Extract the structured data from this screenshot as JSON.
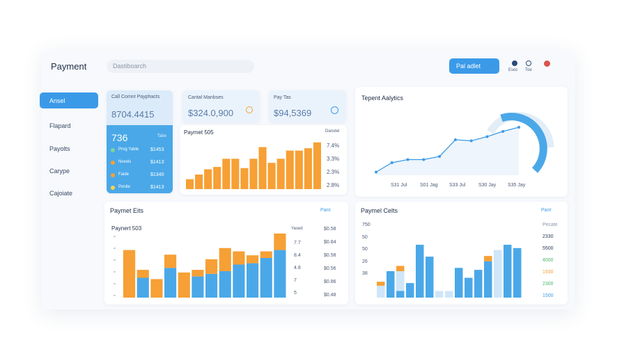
{
  "header": {
    "title": "Payment",
    "search": "Dastiboarch",
    "button": "Pal adlet",
    "user_items": [
      "Esoc",
      "Toe"
    ]
  },
  "sidebar": {
    "items": [
      "Ansel",
      "Flapard",
      "Payolts",
      "Carype",
      "Cajoiate"
    ]
  },
  "cards": [
    {
      "label": "Call Comnt Payphacts",
      "value": "8704.4415"
    },
    {
      "label": "Cantal Manbses",
      "value": "$324.0,900"
    },
    {
      "label": "Pay Tas",
      "value": "$94,5369"
    }
  ],
  "summary": {
    "value": "736",
    "tag": "Tabo",
    "items": [
      {
        "name": "Prog Yable",
        "amount": "$1453"
      },
      {
        "name": "Novels",
        "amount": "$1413"
      },
      {
        "name": "Faide",
        "amount": "$1340"
      },
      {
        "name": "Ponite",
        "amount": "$1413"
      }
    ]
  },
  "bar_chart": {
    "title": "Paymet 505",
    "legend": "Danstel",
    "labels": [
      "7.4%",
      "3.3%",
      "2.3%",
      "2.8%"
    ],
    "color": "#f6a035",
    "ylim": [
      0,
      100
    ],
    "values": [
      17,
      25,
      34,
      38,
      52,
      52,
      36,
      52,
      72,
      45,
      52,
      66,
      66,
      70,
      80
    ]
  },
  "analytics": {
    "title": "Tepent Aalytics",
    "x_labels": [
      "S31 Jul",
      "S01 Jag",
      "S33 Jul",
      "S30 Jay",
      "S35 Jay"
    ],
    "color": "#3b9ae8",
    "ylim": [
      0,
      100
    ],
    "values": [
      6,
      24,
      30,
      30,
      36,
      68,
      66,
      74,
      84,
      92
    ]
  },
  "panel_left": {
    "title": "Paymet Eits",
    "filter": "Pant",
    "chart_title": "Paynert 503",
    "legend": "Yased",
    "labels_a": [
      "7.7",
      "8.4",
      "4.8",
      "7",
      "5"
    ],
    "labels_b": [
      "$0.58",
      "$0.84",
      "$0.58",
      "$0.56",
      "$0.86",
      "$0.48"
    ],
    "ylim": [
      0,
      100
    ],
    "series": [
      {
        "name": "Blue",
        "color": "#4aa8e8",
        "values": [
          0,
          30,
          0,
          45,
          0,
          32,
          36,
          40,
          50,
          52,
          60,
          72
        ]
      },
      {
        "name": "Orange",
        "color": "#f6a035",
        "values": [
          72,
          12,
          28,
          20,
          38,
          10,
          22,
          35,
          20,
          12,
          10,
          25
        ]
      }
    ]
  },
  "panel_right": {
    "title": "Paymel Celts",
    "filter": "Pant",
    "left_labels": [
      "750",
      "50",
      "50",
      "26",
      "38"
    ],
    "right_labels": [
      "Pecate",
      "2330",
      "5500",
      "4000",
      "1930",
      "2300",
      "1500"
    ],
    "ylim": [
      0,
      100
    ],
    "series": [
      {
        "name": "Blue",
        "color": "#4aa8e8",
        "values": [
          0,
          40,
          10,
          22,
          80,
          62,
          0,
          0,
          45,
          30,
          42,
          55,
          0,
          80,
          75
        ]
      },
      {
        "name": "Light",
        "color": "#cfe6f8",
        "values": [
          18,
          0,
          30,
          0,
          0,
          0,
          10,
          10,
          0,
          0,
          0,
          0,
          72,
          0,
          0
        ]
      },
      {
        "name": "Orange",
        "color": "#f6a035",
        "values": [
          6,
          0,
          8,
          0,
          0,
          0,
          0,
          0,
          0,
          0,
          0,
          8,
          0,
          0,
          0
        ]
      }
    ]
  }
}
